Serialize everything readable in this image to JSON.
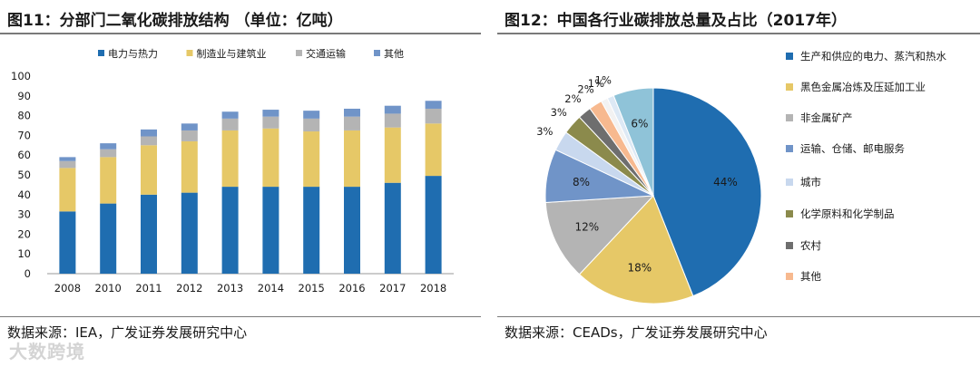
{
  "left": {
    "title": "图11：分部门二氧化碳排放结构 （单位：亿吨）",
    "source": "数据来源：IEA，广发证券发展研究中心"
  },
  "right": {
    "title": "图12：中国各行业碳排放总量及占比（2017年）",
    "source": "数据来源：CEADs，广发证券发展研究中心"
  },
  "watermark": "大数跨境",
  "chart_data": [
    {
      "type": "bar",
      "stacked": true,
      "title": "图11：分部门二氧化碳排放结构 （单位：亿吨）",
      "categories": [
        "2008",
        "2010",
        "2011",
        "2012",
        "2013",
        "2014",
        "2015",
        "2016",
        "2017",
        "2018"
      ],
      "series": [
        {
          "name": "电力与热力",
          "color": "#1f6db0",
          "values": [
            31.5,
            35.5,
            40,
            41,
            44,
            44,
            44,
            44,
            46,
            49.5
          ]
        },
        {
          "name": "制造业与建筑业",
          "color": "#e6c867",
          "values": [
            22,
            23.5,
            25,
            26,
            28.5,
            29.5,
            28,
            28.5,
            28,
            26.5
          ]
        },
        {
          "name": "交通运输",
          "color": "#b4b4b4",
          "values": [
            3.5,
            4,
            4.5,
            5.5,
            6,
            6,
            6.5,
            7,
            7,
            7.5
          ]
        },
        {
          "name": "其他",
          "color": "#7094c8",
          "values": [
            2,
            3,
            3.5,
            3.5,
            3.5,
            3.5,
            4,
            4,
            4,
            4
          ]
        }
      ],
      "ylim": [
        0,
        100
      ],
      "yticks": [
        0,
        10,
        20,
        30,
        40,
        50,
        60,
        70,
        80,
        90,
        100
      ],
      "legend_position": "top",
      "grid": false
    },
    {
      "type": "pie",
      "title": "图12：中国各行业碳排放总量及占比（2017年）",
      "start": "top-center, clockwise",
      "slices": [
        {
          "name": "生产和供应的电力、蒸汽和热水",
          "value": 44,
          "label": "44%",
          "color": "#1f6db0"
        },
        {
          "name": "黑色金属冶炼及压延加工业",
          "value": 18,
          "label": "18%",
          "color": "#e6c867"
        },
        {
          "name": "非金属矿产",
          "value": 12,
          "label": "12%",
          "color": "#b4b4b4"
        },
        {
          "name": "运输、仓储、邮电服务",
          "value": 8,
          "label": "8%",
          "color": "#7094c8"
        },
        {
          "name": "城市",
          "value": 3,
          "label": "3%",
          "color": "#c8d8ee"
        },
        {
          "name": "化学原料和化学制品",
          "value": 3,
          "label": "3%",
          "color": "#8b8a4c"
        },
        {
          "name": "农村",
          "value": 2,
          "label": "2%",
          "color": "#6e6e6e"
        },
        {
          "name": "其他",
          "value": 2,
          "label": "2%",
          "color": "#f7b98f"
        },
        {
          "name": "",
          "value": 1,
          "label": "1%",
          "color": "#f2f2f2"
        },
        {
          "name": "",
          "value": 1,
          "label": "1%",
          "color": "#dde9f5"
        },
        {
          "name": "",
          "value": 6,
          "label": "6%",
          "color": "#8fc3d8"
        }
      ],
      "legend_position": "right"
    }
  ]
}
